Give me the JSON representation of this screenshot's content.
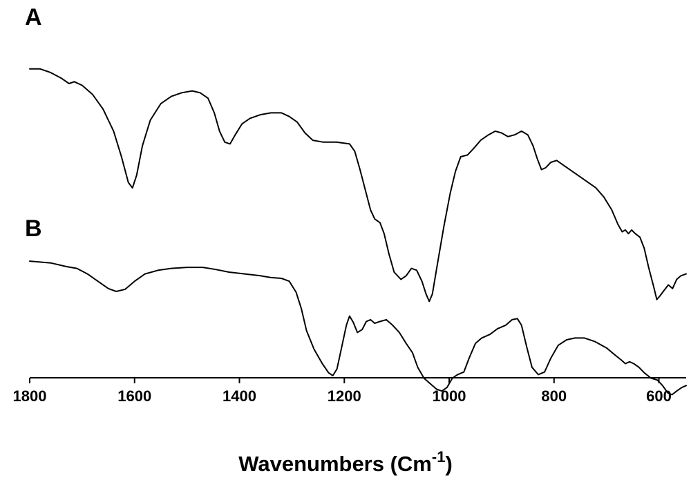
{
  "chart_data": {
    "type": "line",
    "xlabel": {
      "main": "Wavenumbers (Cm",
      "superscript": "-1",
      "close": ")"
    },
    "ylabel": "",
    "xlim": [
      1800,
      548
    ],
    "x_reversed": true,
    "y_ticks_shown": false,
    "grid": false,
    "legend": "none",
    "x_ticks": [
      1800,
      1600,
      1400,
      1200,
      1000,
      800,
      600
    ],
    "x_tick_labels": [
      "1800",
      "1600",
      "1400",
      "1200",
      "1000",
      "800",
      "600"
    ],
    "y_unit": "relative transmittance (panel offset, unlabeled)",
    "series": [
      {
        "panel_label": "A",
        "points": [
          [
            1800,
            0.84
          ],
          [
            1780,
            0.84
          ],
          [
            1760,
            0.83
          ],
          [
            1740,
            0.815
          ],
          [
            1725,
            0.8
          ],
          [
            1715,
            0.805
          ],
          [
            1700,
            0.795
          ],
          [
            1680,
            0.77
          ],
          [
            1660,
            0.73
          ],
          [
            1640,
            0.67
          ],
          [
            1625,
            0.6
          ],
          [
            1612,
            0.53
          ],
          [
            1604,
            0.515
          ],
          [
            1596,
            0.55
          ],
          [
            1585,
            0.63
          ],
          [
            1570,
            0.7
          ],
          [
            1550,
            0.745
          ],
          [
            1530,
            0.765
          ],
          [
            1510,
            0.775
          ],
          [
            1490,
            0.78
          ],
          [
            1475,
            0.775
          ],
          [
            1460,
            0.76
          ],
          [
            1448,
            0.72
          ],
          [
            1438,
            0.67
          ],
          [
            1428,
            0.64
          ],
          [
            1418,
            0.635
          ],
          [
            1408,
            0.66
          ],
          [
            1395,
            0.69
          ],
          [
            1380,
            0.705
          ],
          [
            1360,
            0.715
          ],
          [
            1340,
            0.72
          ],
          [
            1320,
            0.72
          ],
          [
            1305,
            0.71
          ],
          [
            1290,
            0.695
          ],
          [
            1275,
            0.665
          ],
          [
            1260,
            0.645
          ],
          [
            1240,
            0.64
          ],
          [
            1215,
            0.64
          ],
          [
            1190,
            0.635
          ],
          [
            1180,
            0.615
          ],
          [
            1170,
            0.565
          ],
          [
            1160,
            0.51
          ],
          [
            1150,
            0.455
          ],
          [
            1142,
            0.43
          ],
          [
            1132,
            0.42
          ],
          [
            1124,
            0.39
          ],
          [
            1115,
            0.335
          ],
          [
            1105,
            0.285
          ],
          [
            1092,
            0.265
          ],
          [
            1082,
            0.275
          ],
          [
            1072,
            0.295
          ],
          [
            1062,
            0.29
          ],
          [
            1052,
            0.26
          ],
          [
            1044,
            0.225
          ],
          [
            1038,
            0.205
          ],
          [
            1032,
            0.225
          ],
          [
            1022,
            0.31
          ],
          [
            1010,
            0.41
          ],
          [
            998,
            0.5
          ],
          [
            988,
            0.56
          ],
          [
            978,
            0.6
          ],
          [
            965,
            0.605
          ],
          [
            952,
            0.625
          ],
          [
            940,
            0.645
          ],
          [
            925,
            0.66
          ],
          [
            912,
            0.67
          ],
          [
            900,
            0.665
          ],
          [
            888,
            0.655
          ],
          [
            875,
            0.66
          ],
          [
            862,
            0.67
          ],
          [
            850,
            0.66
          ],
          [
            840,
            0.63
          ],
          [
            832,
            0.595
          ],
          [
            824,
            0.565
          ],
          [
            816,
            0.57
          ],
          [
            806,
            0.585
          ],
          [
            795,
            0.59
          ],
          [
            780,
            0.575
          ],
          [
            760,
            0.555
          ],
          [
            740,
            0.535
          ],
          [
            720,
            0.515
          ],
          [
            705,
            0.49
          ],
          [
            690,
            0.455
          ],
          [
            678,
            0.415
          ],
          [
            670,
            0.395
          ],
          [
            664,
            0.4
          ],
          [
            658,
            0.39
          ],
          [
            652,
            0.4
          ],
          [
            645,
            0.39
          ],
          [
            636,
            0.38
          ],
          [
            628,
            0.35
          ],
          [
            620,
            0.3
          ],
          [
            610,
            0.245
          ],
          [
            604,
            0.21
          ],
          [
            598,
            0.22
          ],
          [
            590,
            0.235
          ],
          [
            582,
            0.25
          ],
          [
            574,
            0.24
          ],
          [
            566,
            0.265
          ],
          [
            558,
            0.275
          ],
          [
            548,
            0.28
          ]
        ]
      },
      {
        "panel_label": "B",
        "points": [
          [
            1800,
            0.315
          ],
          [
            1760,
            0.31
          ],
          [
            1730,
            0.3
          ],
          [
            1710,
            0.295
          ],
          [
            1690,
            0.28
          ],
          [
            1670,
            0.26
          ],
          [
            1650,
            0.24
          ],
          [
            1635,
            0.232
          ],
          [
            1618,
            0.238
          ],
          [
            1600,
            0.26
          ],
          [
            1580,
            0.28
          ],
          [
            1555,
            0.29
          ],
          [
            1530,
            0.295
          ],
          [
            1500,
            0.298
          ],
          [
            1470,
            0.298
          ],
          [
            1445,
            0.292
          ],
          [
            1420,
            0.285
          ],
          [
            1390,
            0.28
          ],
          [
            1360,
            0.275
          ],
          [
            1340,
            0.27
          ],
          [
            1320,
            0.268
          ],
          [
            1305,
            0.26
          ],
          [
            1292,
            0.23
          ],
          [
            1282,
            0.185
          ],
          [
            1272,
            0.125
          ],
          [
            1258,
            0.075
          ],
          [
            1242,
            0.035
          ],
          [
            1230,
            0.01
          ],
          [
            1222,
            0.002
          ],
          [
            1214,
            0.02
          ],
          [
            1205,
            0.08
          ],
          [
            1196,
            0.14
          ],
          [
            1190,
            0.165
          ],
          [
            1183,
            0.148
          ],
          [
            1175,
            0.12
          ],
          [
            1166,
            0.128
          ],
          [
            1158,
            0.15
          ],
          [
            1150,
            0.155
          ],
          [
            1142,
            0.145
          ],
          [
            1132,
            0.15
          ],
          [
            1120,
            0.155
          ],
          [
            1108,
            0.14
          ],
          [
            1095,
            0.12
          ],
          [
            1082,
            0.09
          ],
          [
            1070,
            0.065
          ],
          [
            1060,
            0.025
          ],
          [
            1048,
            -0.005
          ],
          [
            1036,
            -0.02
          ],
          [
            1024,
            -0.035
          ],
          [
            1014,
            -0.04
          ],
          [
            1004,
            -0.03
          ],
          [
            994,
            -0.005
          ],
          [
            984,
            0.005
          ],
          [
            972,
            0.012
          ],
          [
            962,
            0.05
          ],
          [
            950,
            0.09
          ],
          [
            938,
            0.105
          ],
          [
            922,
            0.115
          ],
          [
            908,
            0.13
          ],
          [
            892,
            0.14
          ],
          [
            880,
            0.155
          ],
          [
            870,
            0.158
          ],
          [
            862,
            0.14
          ],
          [
            852,
            0.08
          ],
          [
            842,
            0.025
          ],
          [
            830,
            0.005
          ],
          [
            818,
            0.012
          ],
          [
            806,
            0.05
          ],
          [
            792,
            0.085
          ],
          [
            776,
            0.1
          ],
          [
            760,
            0.105
          ],
          [
            742,
            0.105
          ],
          [
            722,
            0.095
          ],
          [
            700,
            0.078
          ],
          [
            685,
            0.06
          ],
          [
            672,
            0.045
          ],
          [
            664,
            0.035
          ],
          [
            656,
            0.04
          ],
          [
            648,
            0.035
          ],
          [
            638,
            0.025
          ],
          [
            628,
            0.01
          ],
          [
            615,
            -0.005
          ],
          [
            603,
            -0.01
          ],
          [
            593,
            -0.025
          ],
          [
            583,
            -0.045
          ],
          [
            575,
            -0.05
          ],
          [
            566,
            -0.04
          ],
          [
            556,
            -0.03
          ],
          [
            548,
            -0.025
          ]
        ]
      }
    ]
  }
}
